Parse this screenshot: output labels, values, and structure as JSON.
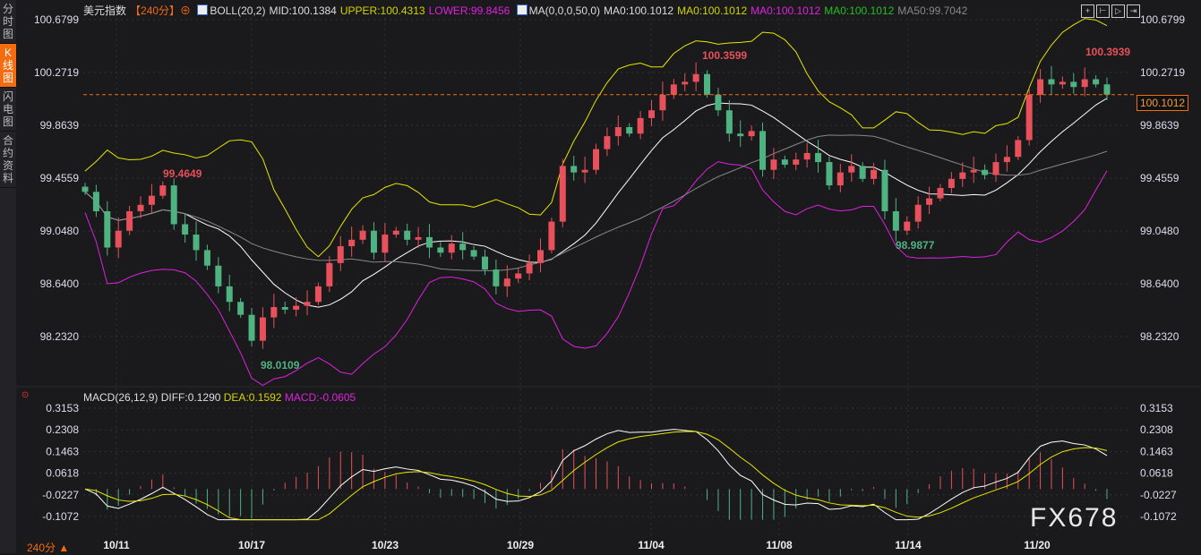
{
  "sidebar": {
    "tabs": [
      {
        "label": "分时图"
      },
      {
        "label": "K线图",
        "active": true
      },
      {
        "label": "闪电图"
      },
      {
        "label": "合约资料"
      }
    ]
  },
  "legend": {
    "symbol": "美元指数",
    "period": "【240分】",
    "boll": "BOLL(20,2)",
    "mid": "MID:100.1384",
    "upper": "UPPER:100.4313",
    "lower": "LOWER:99.8456",
    "ma": "MA(0,0,0,50,0)",
    "ma1": "MA0:100.1012",
    "ma2": "MA0:100.1012",
    "ma3": "MA0:100.1012",
    "ma4": "MA0:100.1012",
    "ma50": "MA50:99.7042"
  },
  "macd_legend": {
    "name": "MACD(26,12,9)",
    "diff": "DIFF:0.1290",
    "dea": "DEA:0.1592",
    "macd": "MACD:-0.0605"
  },
  "timeframe": "240分 ▲",
  "current_price": "100.1012",
  "watermark": "FX678",
  "colors": {
    "up": "#e8505b",
    "down": "#4fb381",
    "mid": "#ffffff",
    "upper": "#e6e600",
    "lower": "#e020e0",
    "ma50": "#888888",
    "dea": "#e6e600",
    "diff": "#ffffff",
    "accent": "#f36c0f"
  },
  "chart_data": [
    {
      "type": "candlestick",
      "title": "美元指数 240分",
      "ylim": [
        98.232,
        100.6799
      ],
      "y_ticks": [
        "100.6799",
        "100.2719",
        "99.8639",
        "99.4559",
        "99.0480",
        "98.6400",
        "98.2320"
      ],
      "x_ticks": [
        "10/11",
        "10/17",
        "10/23",
        "10/29",
        "11/04",
        "11/08",
        "11/14",
        "11/20"
      ],
      "annotations": [
        {
          "label": "99.4649",
          "type": "high"
        },
        {
          "label": "98.0109",
          "type": "low"
        },
        {
          "label": "100.3599",
          "type": "high"
        },
        {
          "label": "98.9877",
          "type": "low"
        },
        {
          "label": "100.3939",
          "type": "high"
        }
      ],
      "close": [
        99.35,
        99.2,
        98.92,
        99.05,
        99.2,
        99.25,
        99.32,
        99.4,
        99.1,
        99.02,
        98.9,
        98.78,
        98.62,
        98.5,
        98.4,
        98.2,
        98.38,
        98.46,
        98.44,
        98.47,
        98.5,
        98.62,
        98.8,
        98.93,
        98.98,
        99.05,
        98.88,
        99.02,
        99.05,
        98.98,
        99.0,
        98.92,
        98.88,
        98.95,
        98.9,
        98.85,
        98.75,
        98.62,
        98.68,
        98.72,
        98.8,
        98.9,
        99.12,
        99.55,
        99.5,
        99.52,
        99.68,
        99.78,
        99.85,
        99.8,
        99.92,
        99.98,
        100.1,
        100.18,
        100.2,
        100.26,
        100.1,
        99.98,
        99.8,
        99.78,
        99.82,
        99.52,
        99.6,
        99.56,
        99.6,
        99.65,
        99.58,
        99.4,
        99.5,
        99.55,
        99.45,
        99.52,
        99.2,
        99.05,
        99.12,
        99.25,
        99.3,
        99.38,
        99.45,
        99.5,
        99.52,
        99.48,
        99.58,
        99.62,
        99.75,
        100.1,
        100.22,
        100.18,
        100.2,
        100.16,
        100.22,
        100.18,
        100.1012
      ]
    },
    {
      "type": "macd",
      "ylim": [
        -0.1072,
        0.3153
      ],
      "y_ticks": [
        "0.3153",
        "0.2308",
        "0.1463",
        "0.0618",
        "-0.0227",
        "-0.1072"
      ]
    }
  ]
}
